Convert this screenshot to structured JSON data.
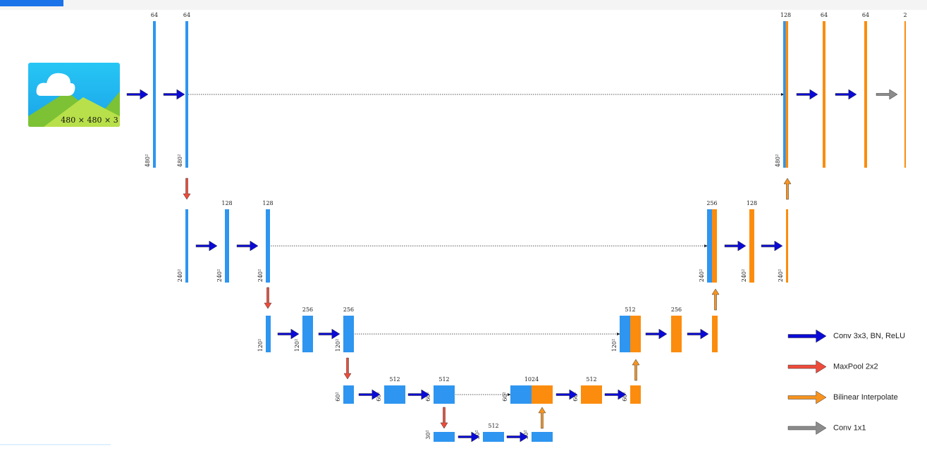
{
  "input_label": "480 × 480 × 3",
  "blocks": [
    {
      "channels": "64",
      "size": "480²"
    },
    {
      "channels": "64",
      "size": "480²"
    },
    {
      "size": "240²"
    },
    {
      "channels": "128",
      "size": "240²"
    },
    {
      "channels": "128",
      "size": "240²"
    },
    {
      "size": "120²"
    },
    {
      "channels": "256",
      "size": "120²"
    },
    {
      "channels": "256",
      "size": "120²"
    },
    {
      "size": "60²"
    },
    {
      "channels": "512",
      "size": "60²"
    },
    {
      "channels": "512",
      "size": "60²"
    },
    {
      "size": "30²"
    },
    {
      "channels": "512",
      "size": "30²"
    },
    {
      "size": "30²"
    },
    {
      "channels": "1024",
      "size": "60²"
    },
    {
      "channels": "512",
      "size": "60²"
    },
    {
      "size": "60²"
    },
    {
      "channels": "512",
      "size": "120²"
    },
    {
      "channels": "256"
    },
    {
      "channels": "256",
      "size": "240²"
    },
    {
      "channels": "128",
      "size": "240²"
    },
    {
      "size": "240²"
    },
    {
      "channels": "128",
      "size": "480²"
    },
    {
      "channels": "64"
    },
    {
      "channels": "64"
    },
    {
      "channels": "2"
    }
  ],
  "legend": [
    "Conv 3x3, BN, ReLU",
    "MaxPool 2x2",
    "Bilinear Interpolate",
    "Conv 1x1"
  ]
}
